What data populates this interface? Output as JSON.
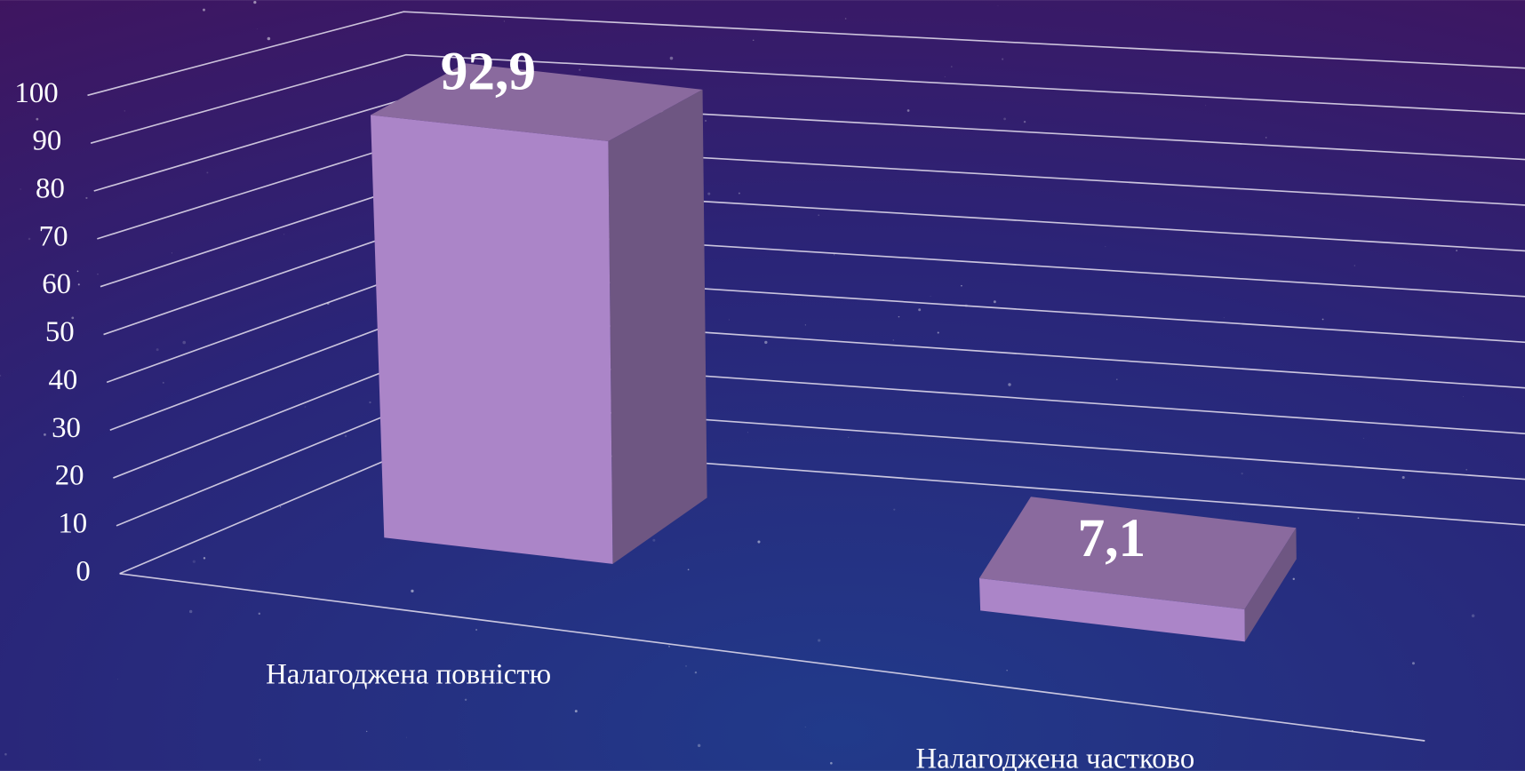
{
  "chart_data": {
    "type": "bar3d",
    "categories": [
      "Налагоджена повністю",
      "Налагоджена частково"
    ],
    "values": [
      92.9,
      7.1
    ],
    "value_labels": [
      "92,9",
      "7,1"
    ],
    "color": "#ab85c8",
    "ylim": [
      0,
      100
    ],
    "yticks": [
      0,
      10,
      20,
      30,
      40,
      50,
      60,
      70,
      80,
      90,
      100
    ],
    "grid": true
  }
}
